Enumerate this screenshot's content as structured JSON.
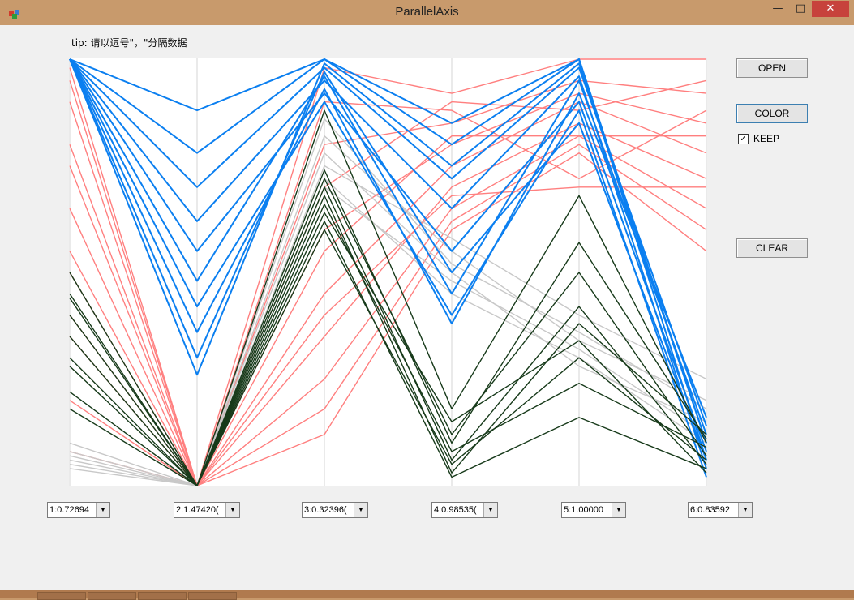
{
  "window": {
    "title": "ParallelAxis",
    "minimize": "—",
    "maximize": "□",
    "close": "✕"
  },
  "tip": "tip: 请以逗号\"，\"分隔数据",
  "buttons": {
    "open": "OPEN",
    "color": "COLOR",
    "clear": "CLEAR"
  },
  "keep": {
    "label": "KEEP",
    "checked": true,
    "mark": "✓"
  },
  "axes": [
    {
      "label": "1:0.72694"
    },
    {
      "label": "2:1.47420("
    },
    {
      "label": "3:0.32396("
    },
    {
      "label": "4:0.98535("
    },
    {
      "label": "5:1.00000"
    },
    {
      "label": "6:0.83592"
    }
  ],
  "colors": {
    "pink": "#ff7f7f",
    "blue": "#0b7ff0",
    "gray": "#c8c8c8",
    "dark": "#173a1a",
    "axis": "#d6d6d6"
  },
  "chart_data": {
    "type": "parallel-coordinates",
    "dimensions": [
      "1:0.72694",
      "2:1.47420(",
      "3:0.32396(",
      "4:0.98535(",
      "5:1.00000",
      "6:0.83592"
    ],
    "ylim": [
      0,
      1
    ],
    "series": [
      {
        "color": "#ff7f7f",
        "lines": [
          [
            0.98,
            0.0,
            0.98,
            0.92,
            1.0,
            1.0
          ],
          [
            0.9,
            0.0,
            0.8,
            0.85,
            0.95,
            0.92
          ],
          [
            0.8,
            0.0,
            0.6,
            0.8,
            0.92,
            0.85
          ],
          [
            0.65,
            0.0,
            0.45,
            0.75,
            0.9,
            0.78
          ],
          [
            0.5,
            0.0,
            0.35,
            0.7,
            0.85,
            0.72
          ],
          [
            0.35,
            0.0,
            0.25,
            0.65,
            0.82,
            0.65
          ],
          [
            0.2,
            0.0,
            0.18,
            0.62,
            0.8,
            0.6
          ],
          [
            0.08,
            0.0,
            0.12,
            0.6,
            0.78,
            0.55
          ],
          [
            0.95,
            0.0,
            0.9,
            0.88,
            0.72,
            0.88
          ],
          [
            0.75,
            0.0,
            0.7,
            0.9,
            0.88,
            0.95
          ],
          [
            0.55,
            0.0,
            0.55,
            0.82,
            0.82,
            0.82
          ],
          [
            0.4,
            0.0,
            0.4,
            0.68,
            0.7,
            0.7
          ]
        ]
      },
      {
        "color": "#c8c8c8",
        "lines": [
          [
            0.04,
            0.0,
            0.82,
            0.55,
            0.34,
            0.2
          ],
          [
            0.06,
            0.0,
            0.78,
            0.5,
            0.28,
            0.15
          ],
          [
            0.08,
            0.0,
            0.75,
            0.58,
            0.4,
            0.25
          ],
          [
            0.1,
            0.0,
            0.72,
            0.45,
            0.3,
            0.1
          ],
          [
            0.05,
            0.0,
            0.86,
            0.52,
            0.36,
            0.18
          ],
          [
            0.07,
            0.0,
            0.7,
            0.48,
            0.32,
            0.12
          ]
        ]
      },
      {
        "color": "#0b7ff0",
        "lines": [
          [
            1.0,
            0.88,
            1.0,
            0.85,
            1.0,
            0.06
          ],
          [
            1.0,
            0.78,
            1.0,
            0.8,
            1.0,
            0.1
          ],
          [
            1.0,
            0.7,
            0.98,
            0.72,
            0.98,
            0.14
          ],
          [
            1.0,
            0.62,
            0.95,
            0.65,
            0.96,
            0.04
          ],
          [
            1.0,
            0.55,
            0.92,
            0.55,
            0.9,
            0.08
          ],
          [
            1.0,
            0.48,
            0.96,
            0.45,
            0.95,
            0.12
          ],
          [
            1.0,
            0.42,
            0.9,
            0.4,
            0.88,
            0.02
          ],
          [
            1.0,
            0.36,
            0.93,
            0.38,
            0.92,
            0.16
          ],
          [
            1.0,
            0.3,
            0.97,
            0.5,
            0.85,
            0.06
          ],
          [
            1.0,
            0.26,
            0.99,
            0.75,
            0.99,
            0.1
          ]
        ]
      },
      {
        "color": "#173a1a",
        "lines": [
          [
            0.5,
            0.0,
            0.88,
            0.18,
            0.68,
            0.1
          ],
          [
            0.45,
            0.0,
            0.72,
            0.12,
            0.5,
            0.07
          ],
          [
            0.4,
            0.0,
            0.7,
            0.06,
            0.42,
            0.05
          ],
          [
            0.35,
            0.0,
            0.68,
            0.03,
            0.38,
            0.12
          ],
          [
            0.3,
            0.0,
            0.66,
            0.08,
            0.24,
            0.09
          ],
          [
            0.22,
            0.0,
            0.64,
            0.15,
            0.34,
            0.03
          ],
          [
            0.18,
            0.0,
            0.6,
            0.05,
            0.3,
            0.06
          ],
          [
            0.44,
            0.0,
            0.74,
            0.1,
            0.57,
            0.11
          ],
          [
            0.28,
            0.0,
            0.62,
            0.02,
            0.16,
            0.04
          ]
        ]
      }
    ]
  }
}
